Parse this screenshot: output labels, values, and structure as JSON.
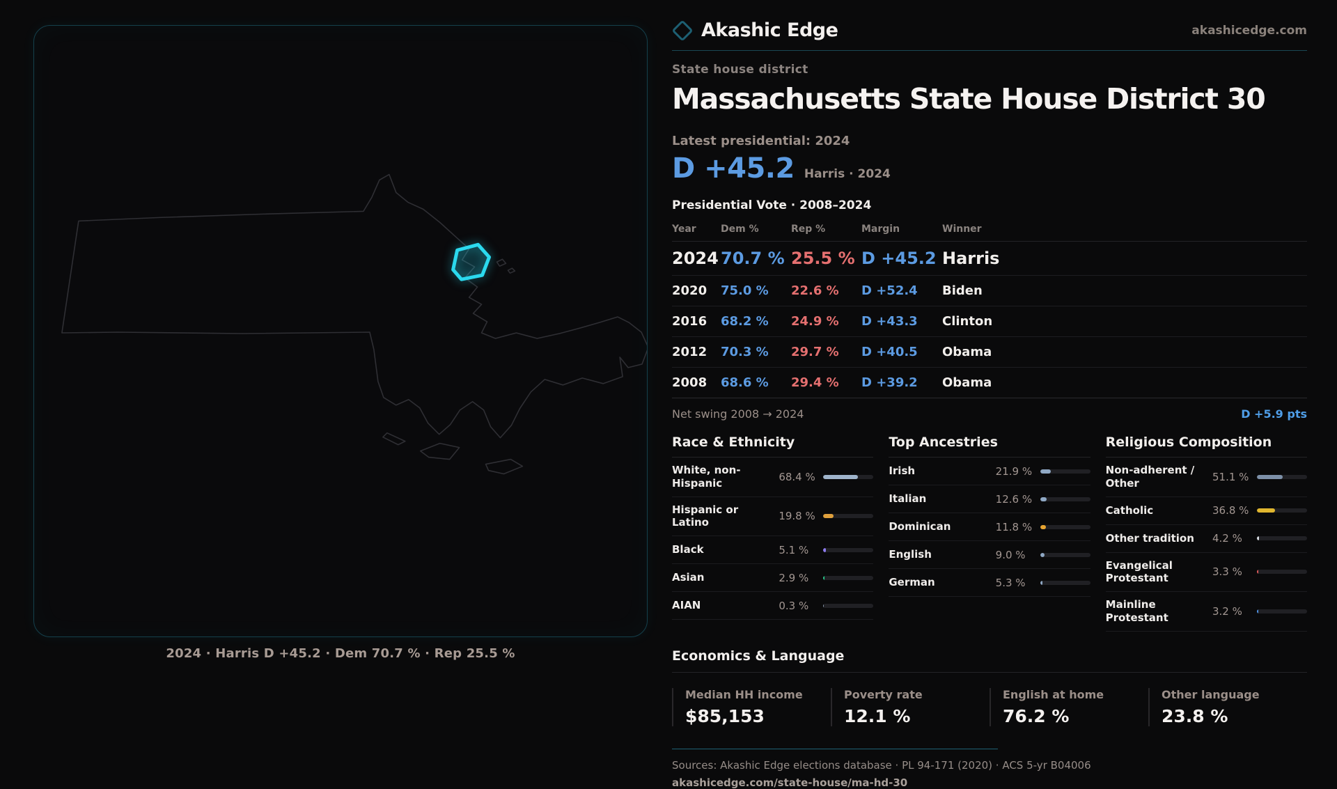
{
  "brand": {
    "name": "Akashic Edge",
    "domain": "akashicedge.com"
  },
  "page": {
    "kicker": "State house district",
    "title": "Massachusetts State House District 30",
    "latest_label": "Latest presidential: 2024",
    "hero_margin": "D +45.2",
    "hero_sub": "Harris · 2024"
  },
  "map": {
    "caption": "2024 · Harris D +45.2 · Dem 70.7 % · Rep 25.5 %",
    "district_color": "#2bd9ee",
    "outline_color": "#2f2f34"
  },
  "pres_table": {
    "title": "Presidential Vote · 2008–2024",
    "headers": [
      "Year",
      "Dem %",
      "Rep %",
      "Margin",
      "Winner"
    ],
    "rows": [
      {
        "year": "2024",
        "dem": "70.7 %",
        "rep": "25.5 %",
        "margin": "D +45.2",
        "winner": "Harris",
        "highlight": true
      },
      {
        "year": "2020",
        "dem": "75.0 %",
        "rep": "22.6 %",
        "margin": "D +52.4",
        "winner": "Biden",
        "highlight": false
      },
      {
        "year": "2016",
        "dem": "68.2 %",
        "rep": "24.9 %",
        "margin": "D +43.3",
        "winner": "Clinton",
        "highlight": false
      },
      {
        "year": "2012",
        "dem": "70.3 %",
        "rep": "29.7 %",
        "margin": "D +40.5",
        "winner": "Obama",
        "highlight": false
      },
      {
        "year": "2008",
        "dem": "68.6 %",
        "rep": "29.4 %",
        "margin": "D +39.2",
        "winner": "Obama",
        "highlight": false
      }
    ]
  },
  "net_swing": {
    "label": "Net swing 2008 → 2024",
    "value": "D +5.9 pts"
  },
  "demographics": {
    "columns": [
      {
        "title": "Race & Ethnicity",
        "rows": [
          {
            "label": "White, non-Hispanic",
            "value": "68.4 %",
            "pct": 68.4,
            "color": "#9fb4cb"
          },
          {
            "label": "Hispanic or Latino",
            "value": "19.8 %",
            "pct": 19.8,
            "color": "#dfa03c"
          },
          {
            "label": "Black",
            "value": "5.1 %",
            "pct": 5.1,
            "color": "#8d7bee"
          },
          {
            "label": "Asian",
            "value": "2.9 %",
            "pct": 2.9,
            "color": "#27c98a"
          },
          {
            "label": "AIAN",
            "value": "0.3 %",
            "pct": 0.3,
            "color": "#8a9aac"
          }
        ]
      },
      {
        "title": "Top Ancestries",
        "rows": [
          {
            "label": "Irish",
            "value": "21.9 %",
            "pct": 21.9,
            "color": "#8fa8c4"
          },
          {
            "label": "Italian",
            "value": "12.6 %",
            "pct": 12.6,
            "color": "#8fa8c4"
          },
          {
            "label": "Dominican",
            "value": "11.8 %",
            "pct": 11.8,
            "color": "#e8a531"
          },
          {
            "label": "English",
            "value": "9.0 %",
            "pct": 9.0,
            "color": "#8fa8c4"
          },
          {
            "label": "German",
            "value": "5.3 %",
            "pct": 5.3,
            "color": "#8fa8c4"
          }
        ]
      },
      {
        "title": "Religious Composition",
        "rows": [
          {
            "label": "Non-adherent / Other",
            "value": "51.1 %",
            "pct": 51.1,
            "color": "#7d90a8"
          },
          {
            "label": "Catholic",
            "value": "36.8 %",
            "pct": 36.8,
            "color": "#e0b62f"
          },
          {
            "label": "Other tradition",
            "value": "4.2 %",
            "pct": 4.2,
            "color": "#d8dde2"
          },
          {
            "label": "Evangelical Protestant",
            "value": "3.3 %",
            "pct": 3.3,
            "color": "#e05a5a"
          },
          {
            "label": "Mainline Protestant",
            "value": "3.2 %",
            "pct": 3.2,
            "color": "#4f93e6"
          }
        ]
      }
    ]
  },
  "economics": {
    "title": "Economics & Language",
    "stats": [
      {
        "label": "Median HH income",
        "value": "$85,153"
      },
      {
        "label": "Poverty rate",
        "value": "12.1 %"
      },
      {
        "label": "English at home",
        "value": "76.2 %"
      },
      {
        "label": "Other language",
        "value": "23.8 %"
      }
    ]
  },
  "footer": {
    "sources": "Sources: Akashic Edge elections database · PL 94-171 (2020) · ACS 5-yr B04006",
    "url": "akashicedge.com/state-house/ma-hd-30"
  }
}
